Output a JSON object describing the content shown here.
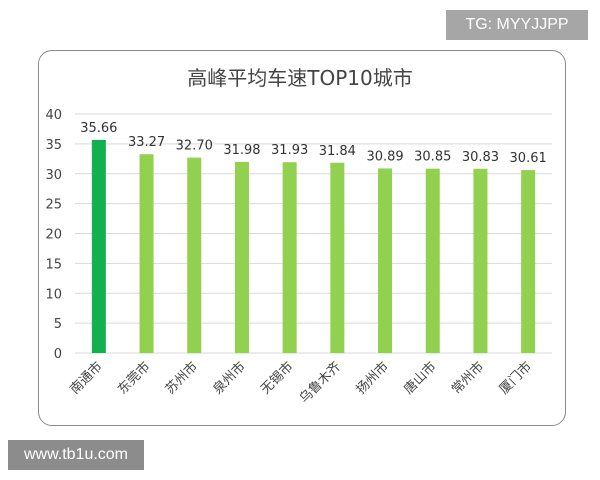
{
  "watermark_top": "TG: MYYJJPP",
  "watermark_bottom": "www.tb1u.com",
  "chart_data": {
    "type": "bar",
    "title": "高峰平均车速TOP10城市",
    "xlabel": "",
    "ylabel": "",
    "categories": [
      "南通市",
      "东莞市",
      "苏州市",
      "泉州市",
      "无锡市",
      "乌鲁木齐",
      "扬州市",
      "唐山市",
      "常州市",
      "厦门市"
    ],
    "values": [
      35.66,
      33.27,
      32.7,
      31.98,
      31.93,
      31.84,
      30.89,
      30.85,
      30.83,
      30.61
    ],
    "data_labels": [
      "35.66",
      "33.27",
      "32.70",
      "31.98",
      "31.93",
      "31.84",
      "30.89",
      "30.85",
      "30.83",
      "30.61"
    ],
    "ylim": [
      0,
      40
    ],
    "yticks": [
      "0",
      "5",
      "10",
      "15",
      "20",
      "25",
      "30",
      "35",
      "40"
    ],
    "grid": true,
    "legend": "none",
    "colors": {
      "highlight": "#12b050",
      "bar": "#92d050",
      "grid": "#d9d9d9"
    }
  }
}
